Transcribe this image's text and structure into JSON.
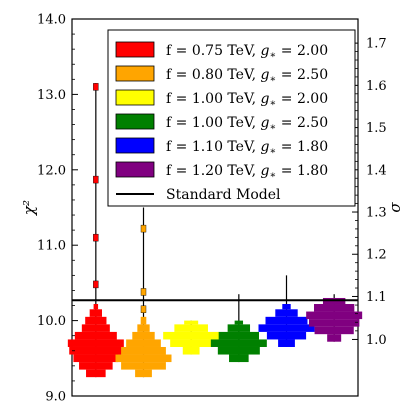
{
  "chart_data": {
    "type": "histogram-violin",
    "ylabel": "χ²",
    "y2label": "σ",
    "ylim": [
      9.0,
      14.0
    ],
    "yticks": [
      {
        "value": 9.0,
        "label": "9.0"
      },
      {
        "value": 10.0,
        "label": "10.0"
      },
      {
        "value": 11.0,
        "label": "11.0"
      },
      {
        "value": 12.0,
        "label": "12.0"
      },
      {
        "value": 13.0,
        "label": "13.0"
      },
      {
        "value": 14.0,
        "label": "14.0"
      }
    ],
    "y2ticks": [
      {
        "chi2": 9.75,
        "label": "1.0"
      },
      {
        "chi2": 10.32,
        "label": "1.1"
      },
      {
        "chi2": 10.88,
        "label": "1.2"
      },
      {
        "chi2": 11.44,
        "label": "1.3"
      },
      {
        "chi2": 12.0,
        "label": "1.4"
      },
      {
        "chi2": 12.56,
        "label": "1.5"
      },
      {
        "chi2": 13.12,
        "label": "1.6"
      },
      {
        "chi2": 13.68,
        "label": "1.7"
      }
    ],
    "reference_line": {
      "name": "Standard Model",
      "value": 10.27,
      "color": "#000000"
    },
    "series": [
      {
        "color": "#ff0000",
        "legend": [
          "f = 0.75 TeV, ",
          "g",
          "∗",
          " = 2.00"
        ],
        "whisker": [
          9.25,
          13.15
        ],
        "outliers": [
          10.48,
          11.1,
          11.87,
          13.1
        ],
        "bins": [
          {
            "lo": 9.25,
            "hi": 9.35,
            "count": 0.35
          },
          {
            "lo": 9.35,
            "hi": 9.45,
            "count": 0.6
          },
          {
            "lo": 9.45,
            "hi": 9.55,
            "count": 0.8
          },
          {
            "lo": 9.55,
            "hi": 9.65,
            "count": 0.95
          },
          {
            "lo": 9.65,
            "hi": 9.75,
            "count": 1.0
          },
          {
            "lo": 9.75,
            "hi": 9.85,
            "count": 0.75
          },
          {
            "lo": 9.85,
            "hi": 9.95,
            "count": 0.5
          },
          {
            "lo": 9.95,
            "hi": 10.05,
            "count": 0.38
          },
          {
            "lo": 10.05,
            "hi": 10.15,
            "count": 0.22
          },
          {
            "lo": 10.15,
            "hi": 10.22,
            "count": 0.08
          }
        ]
      },
      {
        "color": "#ffa500",
        "legend": [
          "f = 0.80 TeV, ",
          "g",
          "∗",
          " = 2.50"
        ],
        "whisker": [
          9.25,
          11.5
        ],
        "outliers": [
          10.15,
          10.38,
          11.22
        ],
        "bins": [
          {
            "lo": 9.25,
            "hi": 9.35,
            "count": 0.3
          },
          {
            "lo": 9.35,
            "hi": 9.45,
            "count": 0.8
          },
          {
            "lo": 9.45,
            "hi": 9.55,
            "count": 1.0
          },
          {
            "lo": 9.55,
            "hi": 9.65,
            "count": 0.8
          },
          {
            "lo": 9.65,
            "hi": 9.75,
            "count": 0.62
          },
          {
            "lo": 9.75,
            "hi": 9.85,
            "count": 0.4
          },
          {
            "lo": 9.85,
            "hi": 9.95,
            "count": 0.22
          },
          {
            "lo": 9.95,
            "hi": 10.05,
            "count": 0.1
          }
        ]
      },
      {
        "color": "#ffff00",
        "legend": [
          "f = 1.00 TeV, ",
          "g",
          "∗",
          " = 2.00"
        ],
        "whisker": [
          9.55,
          10.0
        ],
        "outliers": [],
        "bins": [
          {
            "lo": 9.55,
            "hi": 9.65,
            "count": 0.3
          },
          {
            "lo": 9.65,
            "hi": 9.75,
            "count": 0.75
          },
          {
            "lo": 9.75,
            "hi": 9.85,
            "count": 1.0
          },
          {
            "lo": 9.85,
            "hi": 9.95,
            "count": 0.6
          },
          {
            "lo": 9.95,
            "hi": 10.0,
            "count": 0.25
          }
        ]
      },
      {
        "color": "#008000",
        "legend": [
          "f = 1.00 TeV, ",
          "g",
          "∗",
          " = 2.50"
        ],
        "whisker": [
          9.45,
          10.35
        ],
        "outliers": [],
        "bins": [
          {
            "lo": 9.45,
            "hi": 9.55,
            "count": 0.35
          },
          {
            "lo": 9.55,
            "hi": 9.65,
            "count": 0.75
          },
          {
            "lo": 9.65,
            "hi": 9.75,
            "count": 1.0
          },
          {
            "lo": 9.75,
            "hi": 9.85,
            "count": 0.72
          },
          {
            "lo": 9.85,
            "hi": 9.95,
            "count": 0.4
          },
          {
            "lo": 9.95,
            "hi": 10.0,
            "count": 0.15
          }
        ]
      },
      {
        "color": "#0000ff",
        "legend": [
          "f = 1.10 TeV, ",
          "g",
          "∗",
          " = 1.80"
        ],
        "whisker": [
          9.65,
          10.6
        ],
        "outliers": [],
        "bins": [
          {
            "lo": 9.65,
            "hi": 9.75,
            "count": 0.3
          },
          {
            "lo": 9.75,
            "hi": 9.85,
            "count": 0.7
          },
          {
            "lo": 9.85,
            "hi": 9.95,
            "count": 1.0
          },
          {
            "lo": 9.95,
            "hi": 10.05,
            "count": 0.75
          },
          {
            "lo": 10.05,
            "hi": 10.15,
            "count": 0.4
          },
          {
            "lo": 10.15,
            "hi": 10.22,
            "count": 0.15
          }
        ]
      },
      {
        "color": "#800080",
        "legend": [
          "f = 1.20 TeV, ",
          "g",
          "∗",
          " = 1.80"
        ],
        "whisker": [
          9.72,
          10.35
        ],
        "outliers": [],
        "bins": [
          {
            "lo": 9.72,
            "hi": 9.82,
            "count": 0.25
          },
          {
            "lo": 9.82,
            "hi": 9.92,
            "count": 0.7
          },
          {
            "lo": 9.92,
            "hi": 10.02,
            "count": 0.9
          },
          {
            "lo": 10.02,
            "hi": 10.12,
            "count": 1.0
          },
          {
            "lo": 10.12,
            "hi": 10.22,
            "count": 0.72
          },
          {
            "lo": 10.22,
            "hi": 10.3,
            "count": 0.4
          }
        ]
      }
    ]
  }
}
